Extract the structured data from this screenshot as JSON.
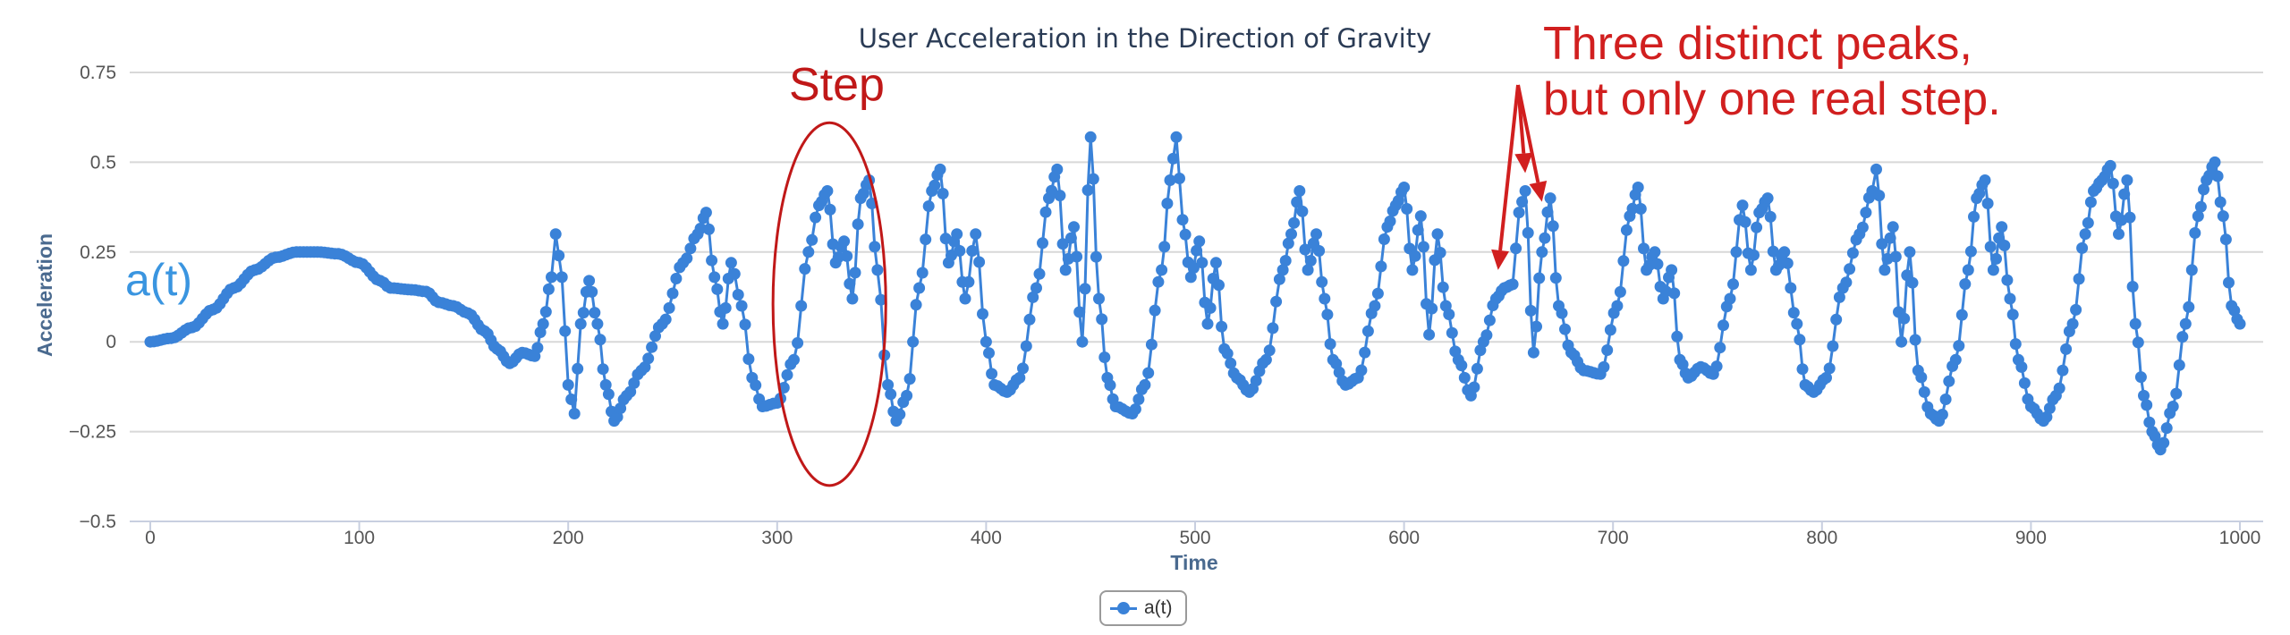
{
  "chart_data": {
    "type": "line",
    "title": "User Acceleration in the Direction of Gravity",
    "xlabel": "Time",
    "ylabel": "Acceleration",
    "xlim": [
      0,
      1000
    ],
    "ylim": [
      -0.5,
      0.75
    ],
    "x_ticks": [
      "0",
      "100",
      "200",
      "300",
      "400",
      "500",
      "600",
      "700",
      "800",
      "900",
      "1000"
    ],
    "y_ticks": [
      "0.75",
      "0.5",
      "0.25",
      "0",
      "−0.25",
      "−0.5"
    ],
    "grid": true,
    "legend_position": "bottom-center",
    "series": [
      {
        "name": "a(t)",
        "color": "#3a82d8",
        "points": [
          [
            0,
            0.0
          ],
          [
            10,
            0.01
          ],
          [
            20,
            0.04
          ],
          [
            30,
            0.09
          ],
          [
            40,
            0.15
          ],
          [
            50,
            0.2
          ],
          [
            60,
            0.235
          ],
          [
            70,
            0.25
          ],
          [
            80,
            0.25
          ],
          [
            90,
            0.245
          ],
          [
            100,
            0.22
          ],
          [
            110,
            0.17
          ],
          [
            115,
            0.15
          ],
          [
            125,
            0.145
          ],
          [
            132,
            0.14
          ],
          [
            138,
            0.11
          ],
          [
            145,
            0.1
          ],
          [
            152,
            0.08
          ],
          [
            160,
            0.03
          ],
          [
            166,
            -0.02
          ],
          [
            172,
            -0.06
          ],
          [
            178,
            -0.03
          ],
          [
            184,
            -0.04
          ],
          [
            188,
            0.05
          ],
          [
            192,
            0.18
          ],
          [
            194,
            0.3
          ],
          [
            197,
            0.18
          ],
          [
            200,
            -0.12
          ],
          [
            203,
            -0.2
          ],
          [
            206,
            0.05
          ],
          [
            210,
            0.17
          ],
          [
            214,
            0.05
          ],
          [
            218,
            -0.12
          ],
          [
            222,
            -0.22
          ],
          [
            228,
            -0.15
          ],
          [
            235,
            -0.08
          ],
          [
            245,
            0.05
          ],
          [
            255,
            0.22
          ],
          [
            262,
            0.3
          ],
          [
            266,
            0.36
          ],
          [
            270,
            0.18
          ],
          [
            274,
            0.05
          ],
          [
            278,
            0.22
          ],
          [
            283,
            0.1
          ],
          [
            288,
            -0.1
          ],
          [
            293,
            -0.18
          ],
          [
            300,
            -0.17
          ],
          [
            308,
            -0.05
          ],
          [
            315,
            0.25
          ],
          [
            320,
            0.38
          ],
          [
            324,
            0.42
          ],
          [
            328,
            0.22
          ],
          [
            332,
            0.28
          ],
          [
            336,
            0.12
          ],
          [
            340,
            0.4
          ],
          [
            344,
            0.45
          ],
          [
            348,
            0.2
          ],
          [
            353,
            -0.12
          ],
          [
            357,
            -0.22
          ],
          [
            362,
            -0.15
          ],
          [
            368,
            0.15
          ],
          [
            374,
            0.42
          ],
          [
            378,
            0.48
          ],
          [
            382,
            0.22
          ],
          [
            386,
            0.3
          ],
          [
            390,
            0.12
          ],
          [
            395,
            0.3
          ],
          [
            400,
            0.0
          ],
          [
            404,
            -0.12
          ],
          [
            410,
            -0.14
          ],
          [
            416,
            -0.1
          ],
          [
            424,
            0.15
          ],
          [
            430,
            0.4
          ],
          [
            434,
            0.48
          ],
          [
            438,
            0.2
          ],
          [
            442,
            0.32
          ],
          [
            446,
            0.0
          ],
          [
            450,
            0.57
          ],
          [
            454,
            0.12
          ],
          [
            458,
            -0.1
          ],
          [
            462,
            -0.18
          ],
          [
            470,
            -0.2
          ],
          [
            476,
            -0.12
          ],
          [
            484,
            0.2
          ],
          [
            488,
            0.45
          ],
          [
            491,
            0.57
          ],
          [
            494,
            0.34
          ],
          [
            498,
            0.18
          ],
          [
            502,
            0.28
          ],
          [
            506,
            0.05
          ],
          [
            510,
            0.22
          ],
          [
            514,
            -0.02
          ],
          [
            520,
            -0.1
          ],
          [
            526,
            -0.14
          ],
          [
            534,
            -0.05
          ],
          [
            542,
            0.2
          ],
          [
            546,
            0.3
          ],
          [
            550,
            0.42
          ],
          [
            554,
            0.2
          ],
          [
            558,
            0.3
          ],
          [
            562,
            0.12
          ],
          [
            566,
            -0.05
          ],
          [
            572,
            -0.12
          ],
          [
            578,
            -0.1
          ],
          [
            586,
            0.1
          ],
          [
            592,
            0.32
          ],
          [
            596,
            0.38
          ],
          [
            600,
            0.43
          ],
          [
            604,
            0.2
          ],
          [
            608,
            0.35
          ],
          [
            612,
            0.02
          ],
          [
            616,
            0.3
          ],
          [
            620,
            0.1
          ],
          [
            626,
            -0.05
          ],
          [
            632,
            -0.15
          ],
          [
            638,
            0.0
          ],
          [
            644,
            0.12
          ],
          [
            648,
            0.15
          ],
          [
            652,
            0.16
          ],
          [
            655,
            0.36
          ],
          [
            658,
            0.42
          ],
          [
            662,
            -0.03
          ],
          [
            666,
            0.25
          ],
          [
            670,
            0.4
          ],
          [
            674,
            0.1
          ],
          [
            680,
            -0.03
          ],
          [
            686,
            -0.08
          ],
          [
            694,
            -0.09
          ],
          [
            702,
            0.1
          ],
          [
            708,
            0.35
          ],
          [
            712,
            0.43
          ],
          [
            716,
            0.2
          ],
          [
            720,
            0.25
          ],
          [
            724,
            0.12
          ],
          [
            728,
            0.2
          ],
          [
            732,
            -0.05
          ],
          [
            736,
            -0.1
          ],
          [
            742,
            -0.07
          ],
          [
            748,
            -0.09
          ],
          [
            756,
            0.12
          ],
          [
            762,
            0.38
          ],
          [
            766,
            0.2
          ],
          [
            770,
            0.36
          ],
          [
            774,
            0.4
          ],
          [
            778,
            0.2
          ],
          [
            782,
            0.25
          ],
          [
            788,
            0.05
          ],
          [
            792,
            -0.12
          ],
          [
            796,
            -0.14
          ],
          [
            802,
            -0.1
          ],
          [
            810,
            0.15
          ],
          [
            818,
            0.3
          ],
          [
            824,
            0.42
          ],
          [
            826,
            0.48
          ],
          [
            830,
            0.2
          ],
          [
            834,
            0.32
          ],
          [
            838,
            0.0
          ],
          [
            842,
            0.25
          ],
          [
            846,
            -0.08
          ],
          [
            852,
            -0.2
          ],
          [
            856,
            -0.22
          ],
          [
            864,
            -0.05
          ],
          [
            870,
            0.2
          ],
          [
            874,
            0.4
          ],
          [
            878,
            0.45
          ],
          [
            882,
            0.2
          ],
          [
            886,
            0.32
          ],
          [
            890,
            0.12
          ],
          [
            894,
            -0.05
          ],
          [
            900,
            -0.18
          ],
          [
            906,
            -0.22
          ],
          [
            912,
            -0.15
          ],
          [
            920,
            0.05
          ],
          [
            926,
            0.3
          ],
          [
            930,
            0.42
          ],
          [
            934,
            0.45
          ],
          [
            938,
            0.49
          ],
          [
            942,
            0.3
          ],
          [
            946,
            0.45
          ],
          [
            950,
            0.05
          ],
          [
            954,
            -0.15
          ],
          [
            958,
            -0.25
          ],
          [
            962,
            -0.3
          ],
          [
            968,
            -0.18
          ],
          [
            974,
            0.05
          ],
          [
            980,
            0.35
          ],
          [
            984,
            0.45
          ],
          [
            988,
            0.5
          ],
          [
            992,
            0.35
          ],
          [
            996,
            0.1
          ],
          [
            1000,
            0.05
          ]
        ]
      }
    ],
    "annotations": [
      {
        "text": "a(t)",
        "color": "#3a95e0"
      },
      {
        "text": "Step",
        "color": "#c01818",
        "shape": "ellipse",
        "x_range": [
          298,
          352
        ],
        "y_range": [
          -0.4,
          0.61
        ]
      },
      {
        "text": "Three distinct peaks,",
        "color": "#d11f1f"
      },
      {
        "text": "but only one real step.",
        "color": "#d11f1f",
        "arrows_to": [
          [
            645,
            0.2
          ],
          [
            658,
            0.47
          ],
          [
            666,
            0.39
          ]
        ]
      }
    ]
  },
  "legend": {
    "label": "a(t)"
  }
}
